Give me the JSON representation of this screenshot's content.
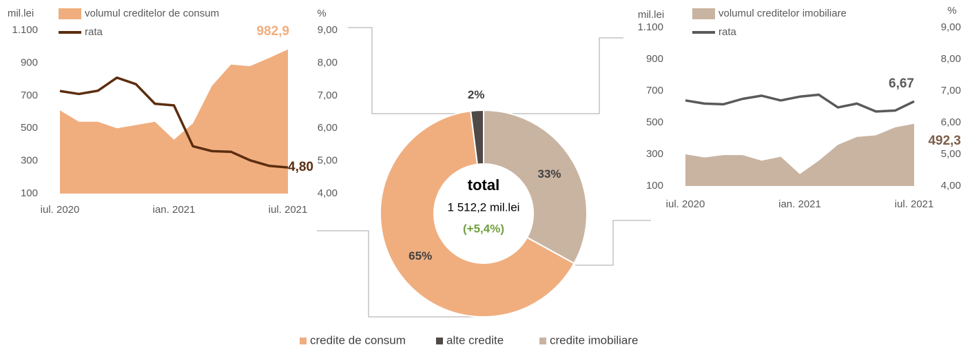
{
  "chart_data": [
    {
      "type": "combo",
      "y_unit": "mil.lei",
      "y2_unit": "%",
      "categories": [
        "iul. 2020",
        null,
        null,
        null,
        null,
        null,
        "ian. 2021",
        null,
        null,
        null,
        null,
        null,
        "iul. 2021"
      ],
      "ylim": [
        100,
        1100
      ],
      "yticks": [
        100,
        300,
        500,
        700,
        900,
        {
          "value": 1100,
          "label": "1.100"
        }
      ],
      "y2lim": [
        4,
        9
      ],
      "y2ticks": [
        {
          "value": 4,
          "label": "4,00"
        },
        {
          "value": 5,
          "label": "5,00"
        },
        {
          "value": 6,
          "label": "6,00"
        },
        {
          "value": 7,
          "label": "7,00"
        },
        {
          "value": 8,
          "label": "8,00"
        },
        {
          "value": 9,
          "label": "9,00"
        }
      ],
      "series": [
        {
          "name": "volumul creditelor de consum",
          "kind": "area",
          "color": "#f0ae7f",
          "label_color": "#f0ae7f",
          "values": [
            610,
            540,
            540,
            500,
            520,
            540,
            430,
            530,
            760,
            890,
            880,
            930,
            982.9
          ],
          "value_labels": [
            null,
            null,
            null,
            null,
            null,
            null,
            null,
            null,
            null,
            null,
            null,
            null,
            "982,9"
          ]
        },
        {
          "name": "rata",
          "kind": "line",
          "axis": "y2",
          "color": "#5c2d0f",
          "label_color": "#5c2d0f",
          "values": [
            7.14,
            7.05,
            7.15,
            7.55,
            7.35,
            6.75,
            6.7,
            5.45,
            5.3,
            5.28,
            5.02,
            4.85,
            4.8
          ],
          "value_labels": [
            null,
            null,
            null,
            null,
            null,
            null,
            null,
            null,
            null,
            null,
            null,
            null,
            "4,80"
          ]
        }
      ]
    },
    {
      "type": "donut",
      "categories": [
        "credite de consum",
        "alte credite",
        "credite imobiliare"
      ],
      "values": [
        65,
        2,
        33
      ],
      "value_labels": [
        "65%",
        "2%",
        "33%"
      ],
      "colors": [
        "#f0ae7f",
        "#4f4a46",
        "#c9b4a2"
      ],
      "center_title": "total",
      "center_value": "1 512,2 mil.lei",
      "center_change": "(+5,4%)"
    },
    {
      "type": "combo",
      "y_unit": "mil.lei",
      "y2_unit": "%",
      "categories": [
        "iul. 2020",
        null,
        null,
        null,
        null,
        null,
        "ian. 2021",
        null,
        null,
        null,
        null,
        null,
        "iul. 2021"
      ],
      "ylim": [
        100,
        1100
      ],
      "yticks": [
        100,
        300,
        500,
        700,
        900,
        {
          "value": 1100,
          "label": "1.100"
        }
      ],
      "y2lim": [
        4,
        9
      ],
      "y2ticks": [
        {
          "value": 4,
          "label": "4,00"
        },
        {
          "value": 5,
          "label": "5,00"
        },
        {
          "value": 6,
          "label": "6,00"
        },
        {
          "value": 7,
          "label": "7,00"
        },
        {
          "value": 8,
          "label": "8,00"
        },
        {
          "value": 9,
          "label": "9,00"
        }
      ],
      "series": [
        {
          "name": "volumul creditelor imobiliare",
          "kind": "area",
          "color": "#c9b4a2",
          "label_color": "#7d5e49",
          "values": [
            300,
            280,
            295,
            295,
            260,
            285,
            175,
            260,
            360,
            410,
            420,
            470,
            492.3
          ],
          "value_labels": [
            null,
            null,
            null,
            null,
            null,
            null,
            null,
            null,
            null,
            null,
            null,
            null,
            "492,3"
          ]
        },
        {
          "name": "rata",
          "kind": "line",
          "axis": "y2",
          "color": "#5a5a5a",
          "label_color": "#5a5a5a",
          "values": [
            6.7,
            6.6,
            6.58,
            6.75,
            6.85,
            6.7,
            6.82,
            6.88,
            6.48,
            6.6,
            6.35,
            6.38,
            6.67
          ],
          "value_labels": [
            null,
            null,
            null,
            null,
            null,
            null,
            null,
            null,
            null,
            null,
            null,
            null,
            "6,67"
          ]
        }
      ]
    }
  ]
}
